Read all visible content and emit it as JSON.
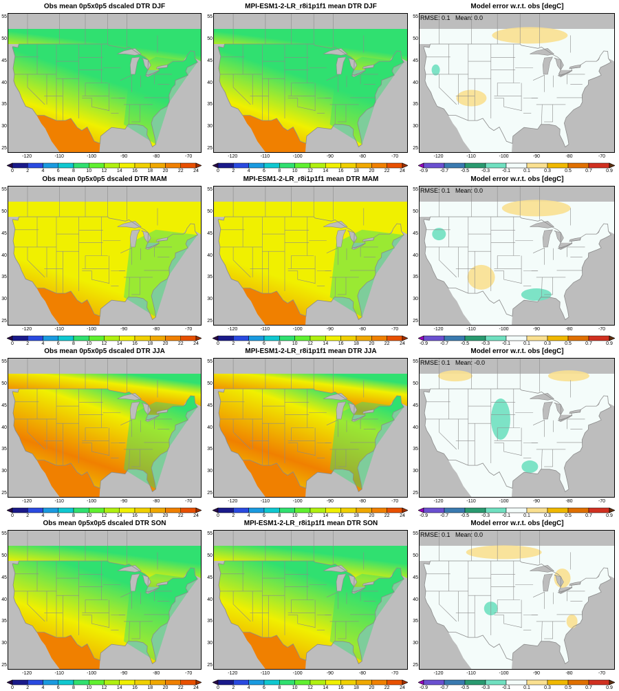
{
  "rows": [
    {
      "season": "DJF",
      "obs_title": "Obs mean 0p5x0p5 dscaled DTR DJF",
      "model_title": "MPI-ESM1-2-LR_r8i1p1f1 mean DTR DJF",
      "diff_title": "Model error w.r.t. obs [degC]",
      "stats": "RMSE: 0.1   Mean: 0.0"
    },
    {
      "season": "MAM",
      "obs_title": "Obs mean 0p5x0p5 dscaled DTR MAM",
      "model_title": "MPI-ESM1-2-LR_r8i1p1f1 mean DTR MAM",
      "diff_title": "Model error w.r.t. obs [degC]",
      "stats": "RMSE: 0.1   Mean: 0.0"
    },
    {
      "season": "JJA",
      "obs_title": "Obs mean 0p5x0p5 dscaled DTR JJA",
      "model_title": "MPI-ESM1-2-LR_r8i1p1f1 mean DTR JJA",
      "diff_title": "Model error w.r.t. obs [degC]",
      "stats": "RMSE: 0.1   Mean: -0.0"
    },
    {
      "season": "SON",
      "obs_title": "Obs mean 0p5x0p5 dscaled DTR SON",
      "model_title": "MPI-ESM1-2-LR_r8i1p1f1 mean DTR SON",
      "diff_title": "Model error w.r.t. obs [degC]",
      "stats": "RMSE: 0.1   Mean: 0.0"
    }
  ],
  "axes": {
    "lon_ticks": [
      "-120",
      "-110",
      "-100",
      "-90",
      "-80",
      "-70"
    ],
    "lon_values": [
      -120,
      -110,
      -100,
      -90,
      -80,
      -70
    ],
    "lat_ticks": [
      "25",
      "30",
      "35",
      "40",
      "45",
      "50",
      "55"
    ],
    "lat_values": [
      25,
      30,
      35,
      40,
      45,
      50,
      55
    ],
    "lon_range": [
      -126,
      -66
    ],
    "lat_range": [
      24,
      56
    ]
  },
  "colorbars": {
    "dtr": {
      "labels": [
        "0",
        "2",
        "4",
        "6",
        "8",
        "10",
        "12",
        "14",
        "16",
        "18",
        "20",
        "22",
        "24"
      ],
      "colors": [
        "#2a0a4a",
        "#1a1a8a",
        "#2a4ae0",
        "#1a9ae0",
        "#10c8d0",
        "#30e070",
        "#60f030",
        "#b0f010",
        "#f0f000",
        "#f0d000",
        "#f0a800",
        "#f08000",
        "#e85000",
        "#a03000"
      ]
    },
    "diff": {
      "labels": [
        "-0.9",
        "-0.7",
        "-0.5",
        "-0.3",
        "-0.1",
        "0.1",
        "0.3",
        "0.5",
        "0.7",
        "0.9"
      ],
      "colors": [
        "#9a00c0",
        "#6a50d0",
        "#3a7ab0",
        "#2a9a70",
        "#70e0c0",
        "#f4fcfa",
        "#fae090",
        "#f0b800",
        "#e07000",
        "#d03020",
        "#603010"
      ]
    }
  },
  "colors": {
    "ocean": "#bdbdbd",
    "border": "#8a8a8a",
    "dtr_low_north": "#30e070",
    "dtr_mid": "#f0f000",
    "dtr_high": "#f08000",
    "diff_zero": "#f4fcfa",
    "diff_pos": "#fae090",
    "diff_neg": "#70e0c0"
  }
}
